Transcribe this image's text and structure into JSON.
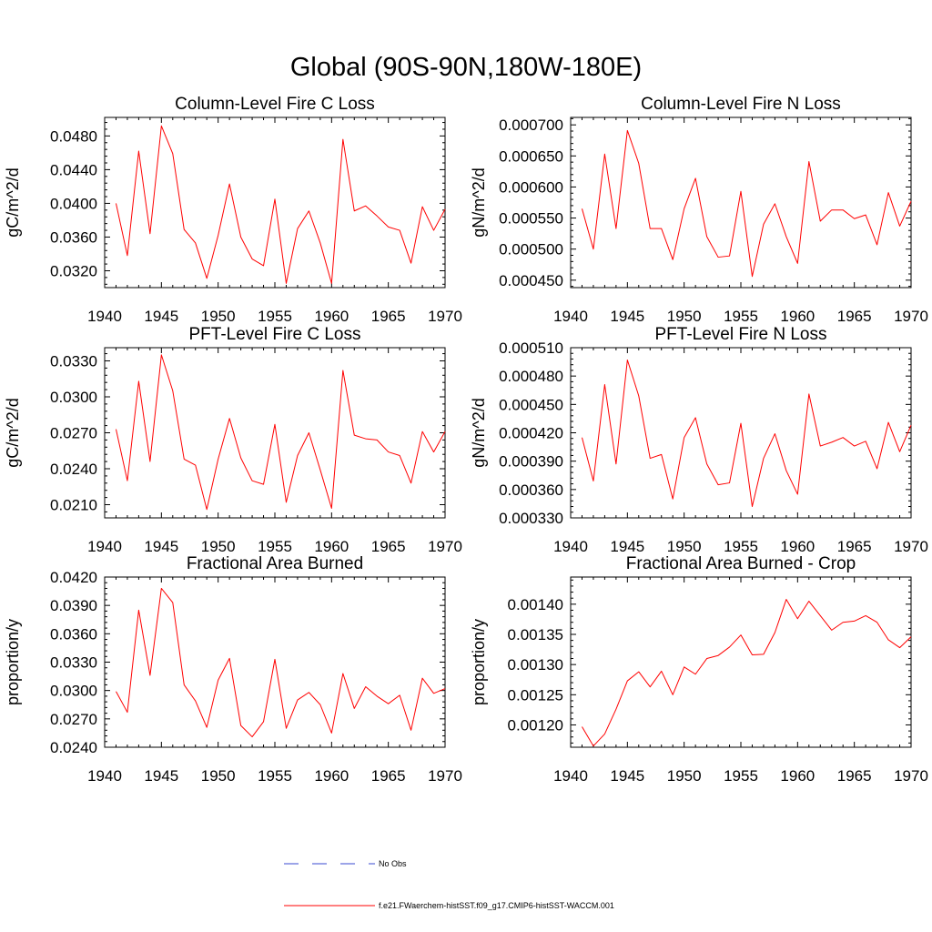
{
  "title": "Global (90S-90N,180W-180E)",
  "legend": [
    {
      "label": "No Obs",
      "color": "#3a4ad0",
      "dash": true
    },
    {
      "label": "f.e21.FWaerchem-histSST.f09_g17.CMIP6-histSST-WACCM.001",
      "color": "#ff0000",
      "dash": false
    }
  ],
  "chart_data": [
    {
      "type": "line",
      "title": "Column-Level Fire C Loss",
      "ylabel": "gC/m^2/d",
      "xlim": [
        1940,
        1970
      ],
      "ylim": [
        0.03,
        0.0502
      ],
      "xticks": [
        "1940",
        "1945",
        "1950",
        "1955",
        "1960",
        "1965",
        "1970"
      ],
      "yticks": [
        "0.0320",
        "0.0360",
        "0.0400",
        "0.0440",
        "0.0480"
      ],
      "grid": false,
      "x": [
        1941,
        1942,
        1943,
        1944,
        1945,
        1946,
        1947,
        1948,
        1949,
        1950,
        1951,
        1952,
        1953,
        1954,
        1955,
        1956,
        1957,
        1958,
        1959,
        1960,
        1961,
        1962,
        1963,
        1964,
        1965,
        1966,
        1967,
        1968,
        1969,
        1970
      ],
      "series": [
        {
          "color": "#ff0000",
          "values": [
            0.04,
            0.0338,
            0.0462,
            0.0364,
            0.0492,
            0.0459,
            0.0369,
            0.0353,
            0.0311,
            0.0362,
            0.0423,
            0.036,
            0.0334,
            0.0326,
            0.0405,
            0.0305,
            0.037,
            0.0391,
            0.0353,
            0.0305,
            0.0476,
            0.0391,
            0.0397,
            0.0385,
            0.0372,
            0.0368,
            0.0329,
            0.0396,
            0.0368,
            0.0393
          ]
        }
      ]
    },
    {
      "type": "line",
      "title": "Column-Level Fire N Loss",
      "ylabel": "gN/m^2/d",
      "xlim": [
        1940,
        1970
      ],
      "ylim": [
        0.000438,
        0.000712
      ],
      "xticks": [
        "1940",
        "1945",
        "1950",
        "1955",
        "1960",
        "1965",
        "1970"
      ],
      "yticks": [
        "0.000450",
        "0.000500",
        "0.000550",
        "0.000600",
        "0.000650",
        "0.000700"
      ],
      "grid": false,
      "x": [
        1941,
        1942,
        1943,
        1944,
        1945,
        1946,
        1947,
        1948,
        1949,
        1950,
        1951,
        1952,
        1953,
        1954,
        1955,
        1956,
        1957,
        1958,
        1959,
        1960,
        1961,
        1962,
        1963,
        1964,
        1965,
        1966,
        1967,
        1968,
        1969,
        1970
      ],
      "series": [
        {
          "color": "#ff0000",
          "values": [
            0.000565,
            0.0005,
            0.000653,
            0.000533,
            0.000691,
            0.000638,
            0.000533,
            0.000533,
            0.000483,
            0.000565,
            0.000614,
            0.00052,
            0.000487,
            0.000489,
            0.000593,
            0.000456,
            0.00054,
            0.000573,
            0.00052,
            0.000477,
            0.000641,
            0.000545,
            0.000563,
            0.000563,
            0.000549,
            0.000555,
            0.000507,
            0.000591,
            0.000537,
            0.000577
          ]
        }
      ]
    },
    {
      "type": "line",
      "title": "PFT-Level Fire C Loss",
      "ylabel": "gC/m^2/d",
      "xlim": [
        1940,
        1970
      ],
      "ylim": [
        0.0199,
        0.0341
      ],
      "xticks": [
        "1940",
        "1945",
        "1950",
        "1955",
        "1960",
        "1965",
        "1970"
      ],
      "yticks": [
        "0.0210",
        "0.0240",
        "0.0270",
        "0.0300",
        "0.0330"
      ],
      "grid": false,
      "x": [
        1941,
        1942,
        1943,
        1944,
        1945,
        1946,
        1947,
        1948,
        1949,
        1950,
        1951,
        1952,
        1953,
        1954,
        1955,
        1956,
        1957,
        1958,
        1959,
        1960,
        1961,
        1962,
        1963,
        1964,
        1965,
        1966,
        1967,
        1968,
        1969,
        1970
      ],
      "series": [
        {
          "color": "#ff0000",
          "values": [
            0.0273,
            0.023,
            0.0313,
            0.0246,
            0.0335,
            0.0305,
            0.0248,
            0.0243,
            0.0206,
            0.0248,
            0.0282,
            0.0249,
            0.023,
            0.0227,
            0.0277,
            0.0212,
            0.0251,
            0.027,
            0.0239,
            0.0207,
            0.0322,
            0.0268,
            0.0265,
            0.0264,
            0.0254,
            0.0251,
            0.0228,
            0.0271,
            0.0254,
            0.0271
          ]
        }
      ]
    },
    {
      "type": "line",
      "title": "PFT-Level Fire N Loss",
      "ylabel": "gN/m^2/d",
      "xlim": [
        1940,
        1970
      ],
      "ylim": [
        0.00033,
        0.00051
      ],
      "xticks": [
        "1940",
        "1945",
        "1950",
        "1955",
        "1960",
        "1965",
        "1970"
      ],
      "yticks": [
        "0.000330",
        "0.000360",
        "0.000390",
        "0.000420",
        "0.000450",
        "0.000480",
        "0.000510"
      ],
      "grid": false,
      "x": [
        1941,
        1942,
        1943,
        1944,
        1945,
        1946,
        1947,
        1948,
        1949,
        1950,
        1951,
        1952,
        1953,
        1954,
        1955,
        1956,
        1957,
        1958,
        1959,
        1960,
        1961,
        1962,
        1963,
        1964,
        1965,
        1966,
        1967,
        1968,
        1969,
        1970
      ],
      "series": [
        {
          "color": "#ff0000",
          "values": [
            0.000415,
            0.000369,
            0.000471,
            0.000387,
            0.000497,
            0.000459,
            0.000393,
            0.000397,
            0.00035,
            0.000415,
            0.000436,
            0.000387,
            0.000365,
            0.000367,
            0.00043,
            0.000342,
            0.000393,
            0.000419,
            0.00038,
            0.000355,
            0.000461,
            0.000406,
            0.00041,
            0.000415,
            0.000406,
            0.000411,
            0.000382,
            0.000431,
            0.0004,
            0.000428
          ]
        }
      ]
    },
    {
      "type": "line",
      "title": "Fractional Area Burned",
      "ylabel": "proportion/y",
      "xlim": [
        1940,
        1970
      ],
      "ylim": [
        0.024,
        0.042
      ],
      "xticks": [
        "1940",
        "1945",
        "1950",
        "1955",
        "1960",
        "1965",
        "1970"
      ],
      "yticks": [
        "0.0240",
        "0.0270",
        "0.0300",
        "0.0330",
        "0.0360",
        "0.0390",
        "0.0420"
      ],
      "grid": false,
      "x": [
        1941,
        1942,
        1943,
        1944,
        1945,
        1946,
        1947,
        1948,
        1949,
        1950,
        1951,
        1952,
        1953,
        1954,
        1955,
        1956,
        1957,
        1958,
        1959,
        1960,
        1961,
        1962,
        1963,
        1964,
        1965,
        1966,
        1967,
        1968,
        1969,
        1970
      ],
      "series": [
        {
          "color": "#ff0000",
          "values": [
            0.0299,
            0.0277,
            0.0385,
            0.0316,
            0.0408,
            0.0393,
            0.0306,
            0.0289,
            0.0261,
            0.0311,
            0.0334,
            0.0263,
            0.0251,
            0.0267,
            0.0333,
            0.026,
            0.029,
            0.0298,
            0.0285,
            0.0255,
            0.0318,
            0.0281,
            0.0304,
            0.0294,
            0.0286,
            0.0295,
            0.0258,
            0.0313,
            0.0297,
            0.0302
          ]
        }
      ]
    },
    {
      "type": "line",
      "title": "Fractional Area Burned - Crop",
      "ylabel": "proportion/y",
      "xlim": [
        1940,
        1970
      ],
      "ylim": [
        0.001163,
        0.001445
      ],
      "xticks": [
        "1940",
        "1945",
        "1950",
        "1955",
        "1960",
        "1965",
        "1970"
      ],
      "yticks": [
        "0.00120",
        "0.00125",
        "0.00130",
        "0.00135",
        "0.00140"
      ],
      "grid": false,
      "x": [
        1941,
        1942,
        1943,
        1944,
        1945,
        1946,
        1947,
        1948,
        1949,
        1950,
        1951,
        1952,
        1953,
        1954,
        1955,
        1956,
        1957,
        1958,
        1959,
        1960,
        1961,
        1962,
        1963,
        1964,
        1965,
        1966,
        1967,
        1968,
        1969,
        1970
      ],
      "series": [
        {
          "color": "#ff0000",
          "values": [
            0.001197,
            0.001165,
            0.001185,
            0.001226,
            0.001273,
            0.001288,
            0.001263,
            0.001289,
            0.00125,
            0.001296,
            0.001284,
            0.00131,
            0.001315,
            0.001329,
            0.001349,
            0.001316,
            0.001317,
            0.001353,
            0.001408,
            0.001376,
            0.001405,
            0.001381,
            0.001357,
            0.00137,
            0.001372,
            0.001381,
            0.00137,
            0.001341,
            0.001328,
            0.001346
          ]
        }
      ]
    }
  ]
}
